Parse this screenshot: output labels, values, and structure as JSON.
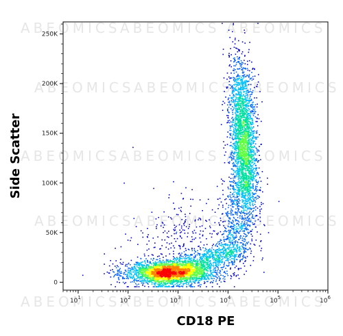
{
  "watermark_text": "ABEOMICS",
  "chart_data": {
    "type": "scatter",
    "style": "density-dot-plot",
    "xlabel": "CD18 PE",
    "ylabel": "Side Scatter",
    "x_scale": "log",
    "xlim": [
      5,
      1000000
    ],
    "ylim": [
      -8000,
      262144
    ],
    "x_ticks": [
      {
        "value": 10,
        "base": "10",
        "exp": "1"
      },
      {
        "value": 100,
        "base": "10",
        "exp": "2"
      },
      {
        "value": 1000,
        "base": "10",
        "exp": "3"
      },
      {
        "value": 10000,
        "base": "10",
        "exp": "4"
      },
      {
        "value": 100000,
        "base": "10",
        "exp": "5"
      },
      {
        "value": 1000000,
        "base": "10",
        "exp": "6"
      }
    ],
    "y_ticks": [
      {
        "value": 0,
        "label": "0"
      },
      {
        "value": 50000,
        "label": "50K"
      },
      {
        "value": 100000,
        "label": "100K"
      },
      {
        "value": 150000,
        "label": "150K"
      },
      {
        "value": 200000,
        "label": "200K"
      },
      {
        "value": 250000,
        "label": "250K"
      }
    ],
    "density_colors": [
      "#0000cc",
      "#0060ff",
      "#00c0ff",
      "#00e0a0",
      "#60ff40",
      "#ffff00",
      "#ff8000",
      "#ff0000"
    ],
    "populations": [
      {
        "name": "negative",
        "x_center": 700,
        "y_center": 10000,
        "x_spread_decades": 0.45,
        "y_spread": 6000,
        "count": 2600
      },
      {
        "name": "negative-tail",
        "x_center": 3000,
        "y_center": 22000,
        "x_spread_decades": 0.45,
        "y_spread": 9000,
        "count": 900
      },
      {
        "name": "positive",
        "x_center": 20000,
        "y_center": 145000,
        "x_spread_decades": 0.13,
        "y_spread": 40000,
        "count": 2600
      },
      {
        "name": "positive-low",
        "x_center": 20000,
        "y_center": 55000,
        "x_spread_decades": 0.17,
        "y_spread": 18000,
        "count": 700
      },
      {
        "name": "scatter-diffuse",
        "x_center": 1500,
        "y_center": 40000,
        "x_spread_decades": 0.6,
        "y_spread": 25000,
        "count": 350
      }
    ]
  }
}
